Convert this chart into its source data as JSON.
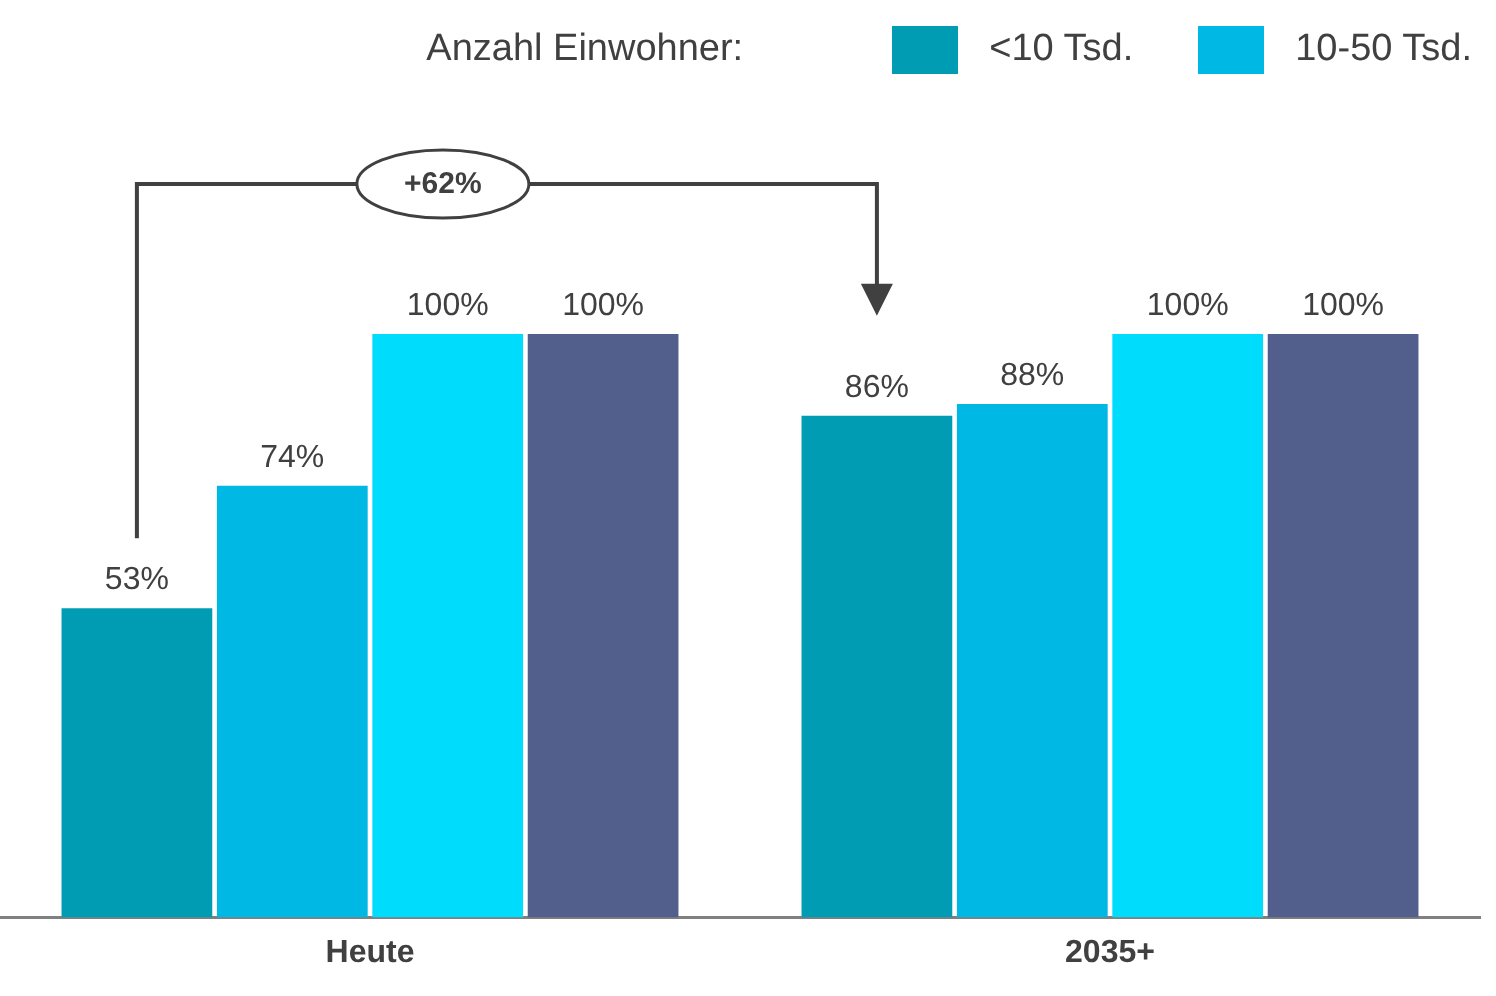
{
  "chart_data": {
    "type": "bar",
    "legend_title": "Anzahl Einwohner:",
    "legend": "top",
    "grid": false,
    "categories": [
      "Heute",
      "2035+"
    ],
    "series": [
      {
        "name": "<10 Tsd.",
        "color": "#009cb4",
        "values": [
          53,
          86
        ],
        "value_labels": [
          "53%",
          "86%"
        ]
      },
      {
        "name": "10-50 Tsd.",
        "color": "#00b8e4",
        "values": [
          74,
          88
        ],
        "value_labels": [
          "74%",
          "88%"
        ]
      },
      {
        "color": "#00dcfc",
        "values": [
          100,
          100
        ],
        "value_labels": [
          "100%",
          "100%"
        ]
      },
      {
        "color": "#525e8c",
        "values": [
          100,
          100
        ],
        "value_labels": [
          "100%",
          "100%"
        ]
      }
    ],
    "annotations": [
      "+62%"
    ]
  }
}
